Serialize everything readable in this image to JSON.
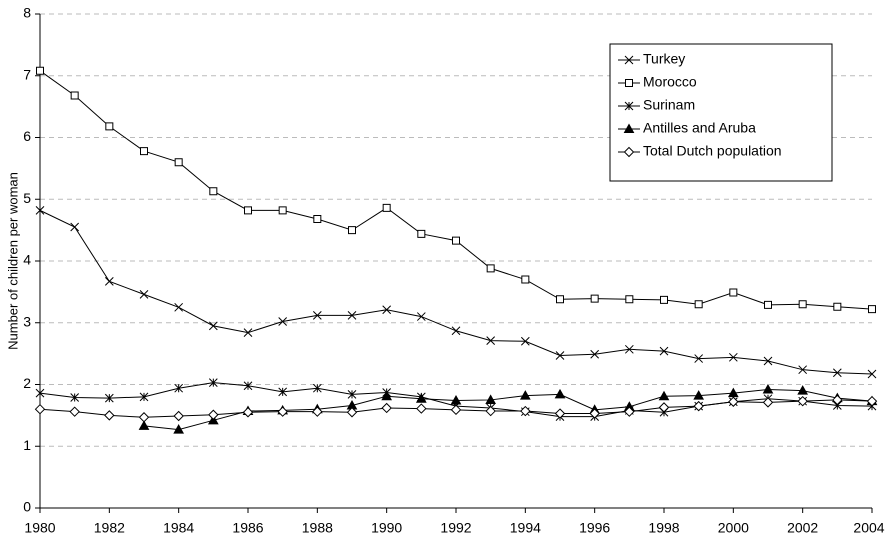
{
  "chart_data": {
    "type": "line",
    "y_label": "Number of children per woman",
    "x": [
      1980,
      1981,
      1982,
      1983,
      1984,
      1985,
      1986,
      1987,
      1988,
      1989,
      1990,
      1991,
      1992,
      1993,
      1994,
      1995,
      1996,
      1997,
      1998,
      1999,
      2000,
      2001,
      2002,
      2003,
      2004
    ],
    "xlim": [
      1980,
      2004
    ],
    "xticks": [
      1980,
      1982,
      1984,
      1986,
      1988,
      1990,
      1992,
      1994,
      1996,
      1998,
      2000,
      2002,
      2004
    ],
    "ylim": [
      0,
      8
    ],
    "yticks": [
      0,
      1,
      2,
      3,
      4,
      5,
      6,
      7,
      8
    ],
    "grid": true,
    "legend": "upper right",
    "series": [
      {
        "name": "Turkey",
        "color": "#000000",
        "marker": "x",
        "values": [
          4.82,
          4.55,
          3.67,
          3.46,
          3.25,
          2.95,
          2.84,
          3.02,
          3.12,
          3.12,
          3.21,
          3.1,
          2.87,
          2.71,
          2.7,
          2.47,
          2.49,
          2.57,
          2.54,
          2.42,
          2.44,
          2.38,
          2.24,
          2.19,
          2.17
        ]
      },
      {
        "name": "Morocco",
        "color": "#000000",
        "marker": "square",
        "values": [
          7.08,
          6.68,
          6.18,
          5.78,
          5.6,
          5.13,
          4.82,
          4.82,
          4.68,
          4.5,
          4.86,
          4.44,
          4.33,
          3.88,
          3.7,
          3.38,
          3.39,
          3.38,
          3.37,
          3.3,
          3.49,
          3.29,
          3.3,
          3.26,
          3.22
        ]
      },
      {
        "name": "Surinam",
        "color": "#000000",
        "marker": "asterisk",
        "values": [
          1.86,
          1.79,
          1.78,
          1.8,
          1.94,
          2.03,
          1.98,
          1.88,
          1.94,
          1.84,
          1.87,
          1.8,
          1.65,
          1.62,
          1.56,
          1.48,
          1.48,
          1.58,
          1.55,
          1.65,
          1.72,
          1.77,
          1.73,
          1.66,
          1.65
        ]
      },
      {
        "name": "Antilles and Aruba",
        "color": "#000000",
        "marker": "triangle",
        "values": [
          null,
          null,
          null,
          1.33,
          1.27,
          1.42,
          1.57,
          1.58,
          1.6,
          1.66,
          1.81,
          1.77,
          1.74,
          1.75,
          1.82,
          1.84,
          1.59,
          1.64,
          1.81,
          1.82,
          1.86,
          1.92,
          1.9,
          1.78,
          1.73
        ]
      },
      {
        "name": "Total Dutch population",
        "color": "#000000",
        "marker": "diamond",
        "values": [
          1.6,
          1.56,
          1.5,
          1.47,
          1.49,
          1.51,
          1.55,
          1.56,
          1.56,
          1.55,
          1.62,
          1.61,
          1.59,
          1.57,
          1.57,
          1.53,
          1.53,
          1.56,
          1.63,
          1.65,
          1.72,
          1.71,
          1.73,
          1.75,
          1.73
        ]
      }
    ]
  }
}
